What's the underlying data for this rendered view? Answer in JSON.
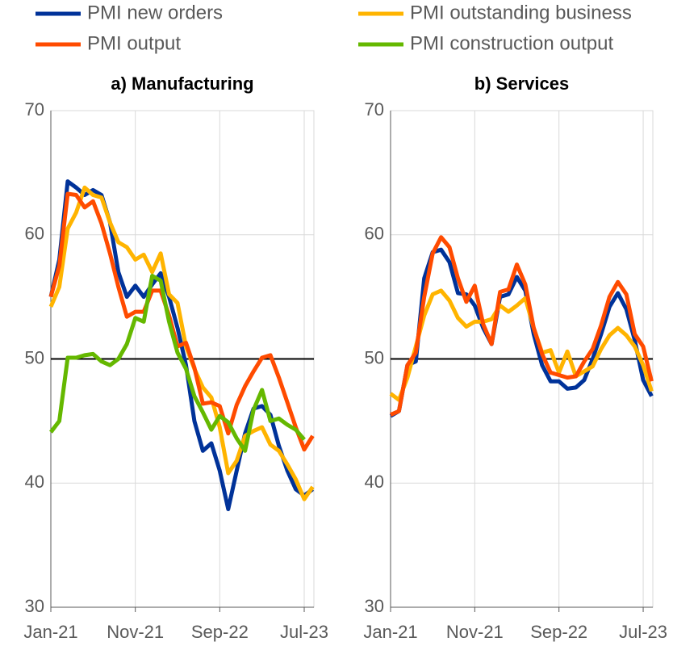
{
  "chart_data": [
    {
      "type": "line",
      "title": "a) Manufacturing",
      "categories": [
        "Jan-21",
        null,
        null,
        null,
        null,
        null,
        null,
        null,
        null,
        null,
        "Nov-21",
        null,
        null,
        null,
        null,
        null,
        null,
        null,
        null,
        null,
        "Sep-22",
        null,
        null,
        null,
        null,
        null,
        null,
        null,
        null,
        null,
        "Jul-23",
        null
      ],
      "ylim": [
        30,
        70
      ],
      "yticks": [
        30,
        40,
        50,
        60,
        70
      ],
      "grid": true,
      "hline": 50,
      "series": [
        {
          "name": "PMI new orders",
          "color": "#003299",
          "values": [
            55,
            58,
            64.3,
            63.8,
            63.2,
            63.6,
            63.2,
            61,
            57,
            55,
            55.9,
            55,
            56,
            56.9,
            55,
            52.5,
            49.5,
            45,
            42.6,
            43.2,
            41,
            37.9,
            41,
            44,
            46,
            46.2,
            45.5,
            43,
            41,
            39.5,
            39,
            39.5
          ]
        },
        {
          "name": "PMI outstanding business",
          "color": "#ffb400",
          "values": [
            54.2,
            55.8,
            60.5,
            61.8,
            63.8,
            63.2,
            63,
            61,
            59.4,
            59,
            58,
            58.4,
            57,
            58.5,
            55.2,
            54.5,
            51,
            49.2,
            47.7,
            46.9,
            44.5,
            40.8,
            41.8,
            43.8,
            44.2,
            44.5,
            43.1,
            42.6,
            41.5,
            40.3,
            38.7,
            39.7
          ]
        },
        {
          "name": "PMI output",
          "color": "#ff4b00",
          "values": [
            55,
            57.5,
            63.3,
            63.2,
            62.2,
            62.7,
            60.9,
            58.5,
            55.8,
            53.4,
            53.8,
            53.8,
            55.5,
            55.5,
            53.5,
            51,
            51.3,
            49.3,
            46.4,
            46.5,
            46.2,
            44,
            46.3,
            47.8,
            49,
            50.1,
            50.3,
            48.5,
            46.5,
            44.5,
            42.7,
            43.8
          ]
        },
        {
          "name": "PMI construction output",
          "color": "#65b800",
          "values": [
            44.1,
            45,
            50.1,
            50.1,
            50.3,
            50.4,
            49.8,
            49.5,
            50,
            51.2,
            53.3,
            53,
            56.7,
            56.3,
            53,
            50.5,
            49.2,
            47,
            45.7,
            44.3,
            45.4,
            44.9,
            43.6,
            42.6,
            45.9,
            47.5,
            45,
            45.2,
            44.7,
            44.3,
            43.5,
            null
          ]
        }
      ]
    },
    {
      "type": "line",
      "title": "b) Services",
      "categories": [
        "Jan-21",
        null,
        null,
        null,
        null,
        null,
        null,
        null,
        null,
        null,
        "Nov-21",
        null,
        null,
        null,
        null,
        null,
        null,
        null,
        null,
        null,
        "Sep-22",
        null,
        null,
        null,
        null,
        null,
        null,
        null,
        null,
        null,
        "Jul-23",
        null
      ],
      "ylim": [
        30,
        70
      ],
      "yticks": [
        30,
        40,
        50,
        60,
        70
      ],
      "grid": true,
      "hline": 50,
      "series": [
        {
          "color": "#003299",
          "values": [
            45.4,
            45.8,
            49.5,
            49.8,
            56.5,
            58.6,
            58.8,
            57.8,
            55.3,
            55.2,
            54.3,
            52.5,
            51.2,
            55,
            55.2,
            56.6,
            55.5,
            52,
            49.5,
            48.2,
            48.2,
            47.6,
            47.7,
            48.3,
            50,
            52,
            54.2,
            55.3,
            54,
            51.5,
            48.3,
            47
          ]
        },
        {
          "color": "#ffb400",
          "values": [
            47.2,
            46.7,
            48.5,
            51,
            53.5,
            55.2,
            55.5,
            54.7,
            53.3,
            52.6,
            53,
            53,
            53.2,
            54.3,
            53.8,
            54.3,
            54.9,
            52.5,
            50.5,
            50.7,
            48.9,
            50.6,
            48.6,
            49,
            49.4,
            50.8,
            51.9,
            52.5,
            51.9,
            51,
            49.5,
            47.4
          ]
        },
        {
          "color": "#ff4b00",
          "values": [
            45.5,
            45.8,
            49.5,
            50.5,
            55,
            58.5,
            59.8,
            59,
            56.5,
            54.6,
            55.9,
            52.8,
            51.2,
            55.4,
            55.6,
            57.6,
            56,
            52.5,
            50.4,
            48.9,
            48.7,
            48.5,
            48.6,
            49.8,
            50.8,
            52.7,
            55,
            56.2,
            55.2,
            52,
            51,
            48.2
          ]
        }
      ]
    }
  ]
}
